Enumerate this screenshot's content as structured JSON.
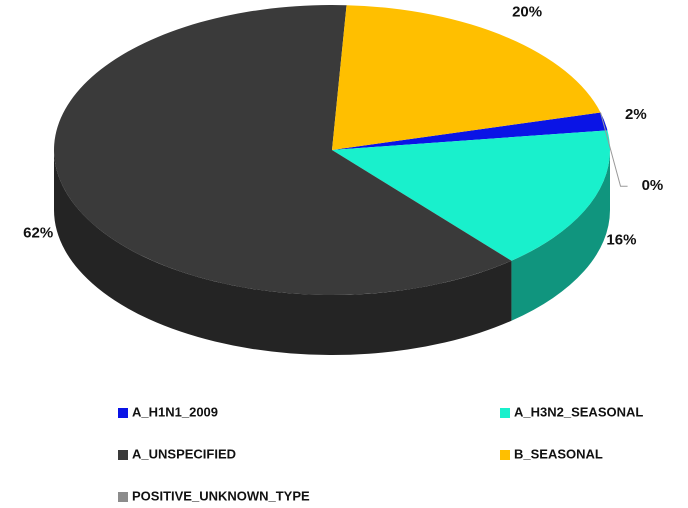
{
  "chart_data": {
    "type": "pie",
    "categories": [
      "A_H1N1_2009",
      "A_H3N2_SEASONAL",
      "A_UNSPECIFIED",
      "B_SEASONAL",
      "POSITIVE_UNKNOWN_TYPE"
    ],
    "values": [
      2,
      16,
      62,
      20,
      0
    ],
    "value_labels": [
      "2%",
      "16%",
      "62%",
      "20%",
      "0%"
    ],
    "colors": [
      "#0a14e6",
      "#19f0cc",
      "#3a3a3a",
      "#ffbf00",
      "#8c8c8c"
    ],
    "legend": "bottom"
  }
}
